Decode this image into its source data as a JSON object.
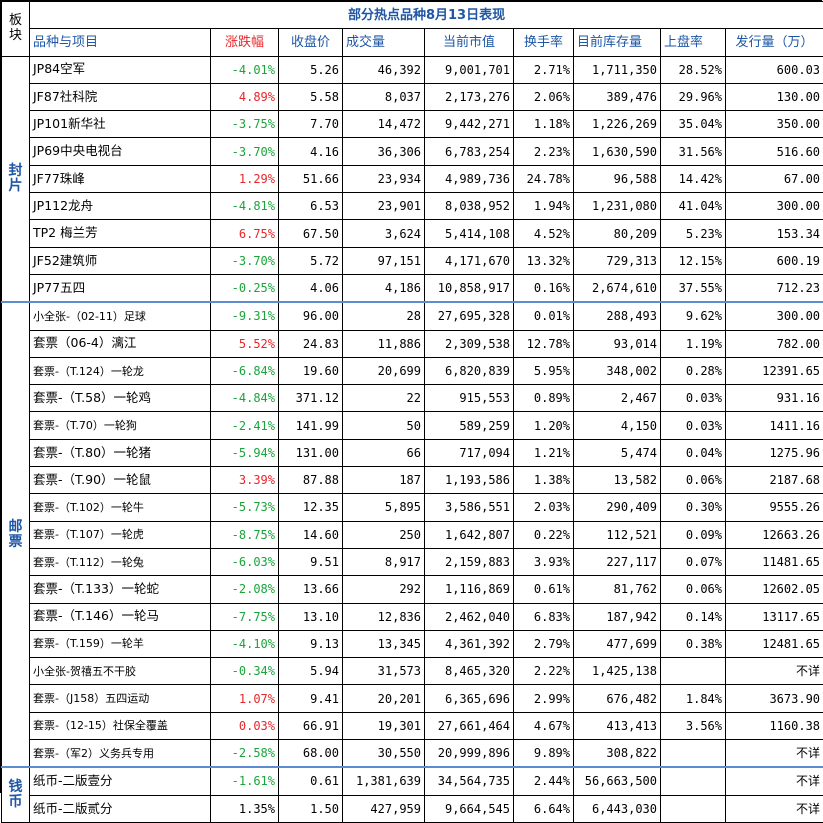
{
  "board_label": "板块",
  "title": "部分热点品种8月13日表现",
  "headers": [
    "品种与项目",
    "涨跌幅",
    "收盘价",
    "成交量",
    "当前市值",
    "换手率",
    "目前库存量",
    "上盘率",
    "发行量（万）"
  ],
  "colors": {
    "header_text": "#1f57a6",
    "up": "#e8262a",
    "down": "#1aa53a",
    "section_separator": "#5d8dd0"
  },
  "sections": [
    {
      "label": "封片",
      "rows": [
        {
          "name": "JP84空军",
          "change": "-4.01%",
          "dir": "down",
          "close": "5.26",
          "volume": "46,392",
          "mktval": "9,001,701",
          "turnover": "2.71%",
          "stock": "1,711,350",
          "uprate": "28.52%",
          "issue": "600.03"
        },
        {
          "name": "JF87社科院",
          "change": "4.89%",
          "dir": "up",
          "close": "5.58",
          "volume": "8,037",
          "mktval": "2,173,276",
          "turnover": "2.06%",
          "stock": "389,476",
          "uprate": "29.96%",
          "issue": "130.00"
        },
        {
          "name": "JP101新华社",
          "change": "-3.75%",
          "dir": "down",
          "close": "7.70",
          "volume": "14,472",
          "mktval": "9,442,271",
          "turnover": "1.18%",
          "stock": "1,226,269",
          "uprate": "35.04%",
          "issue": "350.00"
        },
        {
          "name": "JP69中央电视台",
          "change": "-3.70%",
          "dir": "down",
          "close": "4.16",
          "volume": "36,306",
          "mktval": "6,783,254",
          "turnover": "2.23%",
          "stock": "1,630,590",
          "uprate": "31.56%",
          "issue": "516.60"
        },
        {
          "name": "JF77珠峰",
          "change": "1.29%",
          "dir": "up",
          "close": "51.66",
          "volume": "23,934",
          "mktval": "4,989,736",
          "turnover": "24.78%",
          "stock": "96,588",
          "uprate": "14.42%",
          "issue": "67.00"
        },
        {
          "name": "JP112龙舟",
          "change": "-4.81%",
          "dir": "down",
          "close": "6.53",
          "volume": "23,901",
          "mktval": "8,038,952",
          "turnover": "1.94%",
          "stock": "1,231,080",
          "uprate": "41.04%",
          "issue": "300.00"
        },
        {
          "name": "TP2 梅兰芳",
          "change": "6.75%",
          "dir": "up",
          "close": "67.50",
          "volume": "3,624",
          "mktval": "5,414,108",
          "turnover": "4.52%",
          "stock": "80,209",
          "uprate": "5.23%",
          "issue": "153.34"
        },
        {
          "name": "JF52建筑师",
          "change": "-3.70%",
          "dir": "down",
          "close": "5.72",
          "volume": "97,151",
          "mktval": "4,171,670",
          "turnover": "13.32%",
          "stock": "729,313",
          "uprate": "12.15%",
          "issue": "600.19"
        },
        {
          "name": "JP77五四",
          "change": "-0.25%",
          "dir": "down",
          "close": "4.06",
          "volume": "4,186",
          "mktval": "10,858,917",
          "turnover": "0.16%",
          "stock": "2,674,610",
          "uprate": "37.55%",
          "issue": "712.23"
        }
      ]
    },
    {
      "label": "邮票",
      "rows": [
        {
          "name": "小全张-（02-11）足球",
          "change": "-9.31%",
          "dir": "down",
          "close": "96.00",
          "volume": "28",
          "mktval": "27,695,328",
          "turnover": "0.01%",
          "stock": "288,493",
          "uprate": "9.62%",
          "issue": "300.00",
          "small": true
        },
        {
          "name": "套票（06-4）漓江",
          "change": "5.52%",
          "dir": "up",
          "close": "24.83",
          "volume": "11,886",
          "mktval": "2,309,538",
          "turnover": "12.78%",
          "stock": "93,014",
          "uprate": "1.19%",
          "issue": "782.00"
        },
        {
          "name": "套票-（T.124）一轮龙",
          "change": "-6.84%",
          "dir": "down",
          "close": "19.60",
          "volume": "20,699",
          "mktval": "6,820,839",
          "turnover": "5.95%",
          "stock": "348,002",
          "uprate": "0.28%",
          "issue": "12391.65",
          "small": true
        },
        {
          "name": "套票-（T.58）一轮鸡",
          "change": "-4.84%",
          "dir": "down",
          "close": "371.12",
          "volume": "22",
          "mktval": "915,553",
          "turnover": "0.89%",
          "stock": "2,467",
          "uprate": "0.03%",
          "issue": "931.16"
        },
        {
          "name": "套票-（T.70）一轮狗",
          "change": "-2.41%",
          "dir": "down",
          "close": "141.99",
          "volume": "50",
          "mktval": "589,259",
          "turnover": "1.20%",
          "stock": "4,150",
          "uprate": "0.03%",
          "issue": "1411.16",
          "small": true
        },
        {
          "name": "套票-（T.80）一轮猪",
          "change": "-5.94%",
          "dir": "down",
          "close": "131.00",
          "volume": "66",
          "mktval": "717,094",
          "turnover": "1.21%",
          "stock": "5,474",
          "uprate": "0.04%",
          "issue": "1275.96"
        },
        {
          "name": "套票-（T.90）一轮鼠",
          "change": "3.39%",
          "dir": "up",
          "close": "87.88",
          "volume": "187",
          "mktval": "1,193,586",
          "turnover": "1.38%",
          "stock": "13,582",
          "uprate": "0.06%",
          "issue": "2187.68"
        },
        {
          "name": "套票-（T.102）一轮牛",
          "change": "-5.73%",
          "dir": "down",
          "close": "12.35",
          "volume": "5,895",
          "mktval": "3,586,551",
          "turnover": "2.03%",
          "stock": "290,409",
          "uprate": "0.30%",
          "issue": "9555.26",
          "small": true
        },
        {
          "name": "套票-（T.107）一轮虎",
          "change": "-8.75%",
          "dir": "down",
          "close": "14.60",
          "volume": "250",
          "mktval": "1,642,807",
          "turnover": "0.22%",
          "stock": "112,521",
          "uprate": "0.09%",
          "issue": "12663.26",
          "small": true
        },
        {
          "name": "套票-（T.112）一轮兔",
          "change": "-6.03%",
          "dir": "down",
          "close": "9.51",
          "volume": "8,917",
          "mktval": "2,159,883",
          "turnover": "3.93%",
          "stock": "227,117",
          "uprate": "0.07%",
          "issue": "11481.65",
          "small": true
        },
        {
          "name": "套票-（T.133）一轮蛇",
          "change": "-2.08%",
          "dir": "down",
          "close": "13.66",
          "volume": "292",
          "mktval": "1,116,869",
          "turnover": "0.61%",
          "stock": "81,762",
          "uprate": "0.06%",
          "issue": "12602.05"
        },
        {
          "name": "套票-（T.146）一轮马",
          "change": "-7.75%",
          "dir": "down",
          "close": "13.10",
          "volume": "12,836",
          "mktval": "2,462,040",
          "turnover": "6.83%",
          "stock": "187,942",
          "uprate": "0.14%",
          "issue": "13117.65"
        },
        {
          "name": "套票-（T.159）一轮羊",
          "change": "-4.10%",
          "dir": "down",
          "close": "9.13",
          "volume": "13,345",
          "mktval": "4,361,392",
          "turnover": "2.79%",
          "stock": "477,699",
          "uprate": "0.38%",
          "issue": "12481.65",
          "small": true
        },
        {
          "name": "小全张-贺禧五不干胶",
          "change": "-0.34%",
          "dir": "down",
          "close": "5.94",
          "volume": "31,573",
          "mktval": "8,465,320",
          "turnover": "2.22%",
          "stock": "1,425,138",
          "uprate": "",
          "issue": "不详",
          "small": true
        },
        {
          "name": "套票-（J158）五四运动",
          "change": "1.07%",
          "dir": "up",
          "close": "9.41",
          "volume": "20,201",
          "mktval": "6,365,696",
          "turnover": "2.99%",
          "stock": "676,482",
          "uprate": "1.84%",
          "issue": "3673.90",
          "small": true
        },
        {
          "name": "套票-（12-15）社保全覆盖",
          "change": "0.03%",
          "dir": "up",
          "close": "66.91",
          "volume": "19,301",
          "mktval": "27,661,464",
          "turnover": "4.67%",
          "stock": "413,413",
          "uprate": "3.56%",
          "issue": "1160.38",
          "small": true
        },
        {
          "name": "套票-（军2）义务兵专用",
          "change": "-2.58%",
          "dir": "down",
          "close": "68.00",
          "volume": "30,550",
          "mktval": "20,999,896",
          "turnover": "9.89%",
          "stock": "308,822",
          "uprate": "",
          "issue": "不详",
          "small": true
        }
      ]
    },
    {
      "label": "钱币",
      "rows": [
        {
          "name": "纸币-二版壹分",
          "change": "-1.61%",
          "dir": "down",
          "close": "0.61",
          "volume": "1,381,639",
          "mktval": "34,564,735",
          "turnover": "2.44%",
          "stock": "56,663,500",
          "uprate": "",
          "issue": "不详"
        },
        {
          "name": "纸币-二版贰分",
          "change": "1.35%",
          "dir": "neutral",
          "close": "1.50",
          "volume": "427,959",
          "mktval": "9,664,545",
          "turnover": "6.64%",
          "stock": "6,443,030",
          "uprate": "",
          "issue": "不详"
        }
      ]
    }
  ]
}
